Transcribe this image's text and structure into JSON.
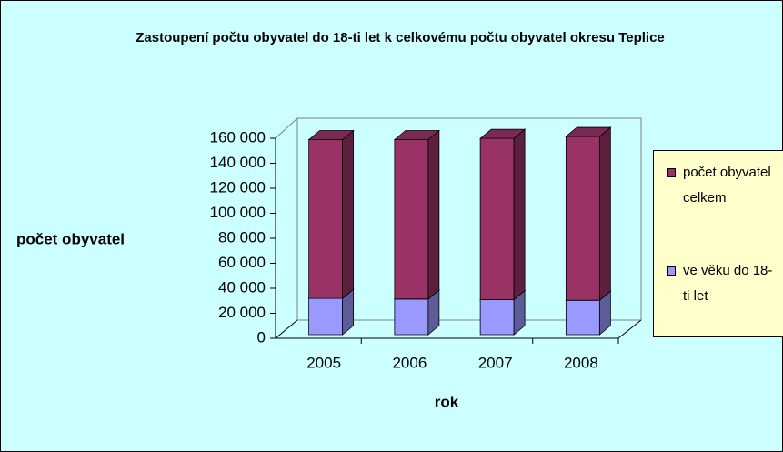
{
  "chart_data": {
    "type": "bar3d-stacked",
    "title": "Zastoupení počtu obyvatel do 18-ti let k celkovému počtu obyvatel okresu Teplice",
    "x_label": "rok",
    "y_label": "počet obyvatel",
    "categories": [
      "2005",
      "2006",
      "2007",
      "2008"
    ],
    "series": [
      {
        "name": "ve věku do 18-ti let",
        "color": "#9999ff",
        "values": [
          29000,
          28500,
          28000,
          27500
        ]
      },
      {
        "name": "počet obyvatel celkem",
        "color": "#993366",
        "values": [
          127000,
          127500,
          129000,
          131000
        ]
      }
    ],
    "ylim": [
      0,
      160000
    ],
    "yticks": [
      0,
      {
        "value": 20000,
        "label": "20 000"
      },
      {
        "value": 40000,
        "label": "40 000"
      },
      {
        "value": 60000,
        "label": "60 000"
      },
      {
        "value": 80000,
        "label": "80 000"
      },
      {
        "value": 100000,
        "label": "100 000"
      },
      {
        "value": 120000,
        "label": "120 000"
      },
      {
        "value": 140000,
        "label": "140 000"
      },
      {
        "value": 160000,
        "label": "160 000"
      }
    ],
    "legend": "right"
  }
}
